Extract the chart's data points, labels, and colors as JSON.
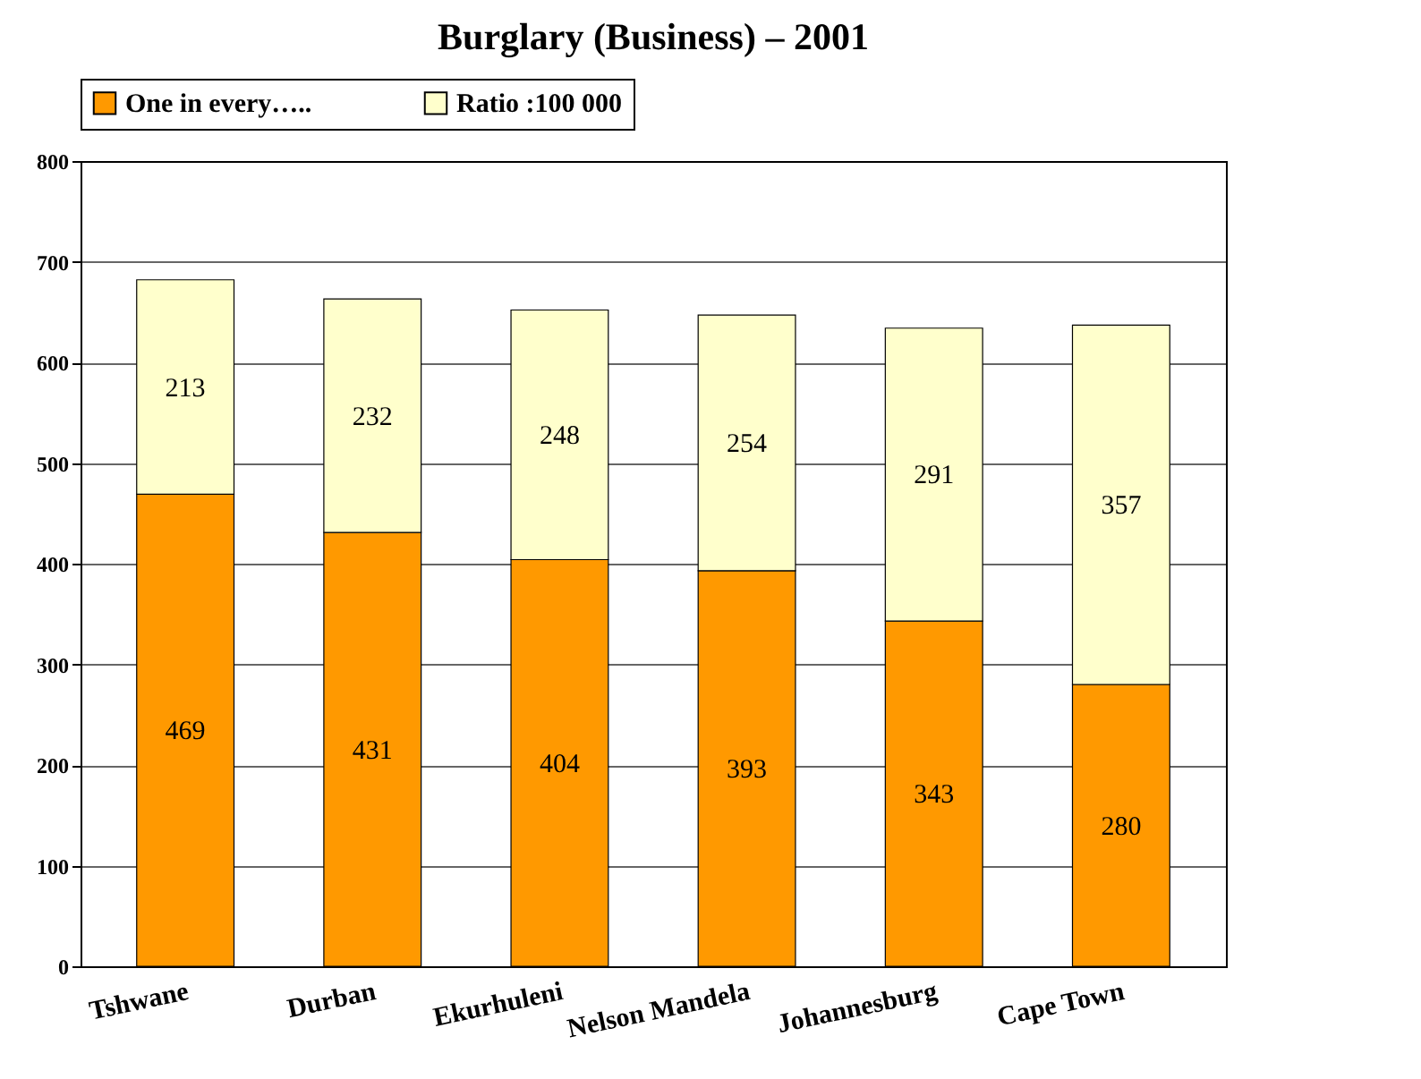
{
  "chart_data": {
    "type": "bar",
    "title": "Burglary (Business) – 2001",
    "categories": [
      "Tshwane",
      "Durban",
      "Ekurhuleni",
      "Nelson Mandela",
      "Johannesburg",
      "Cape Town"
    ],
    "series": [
      {
        "name": "One in every…..",
        "color": "#ff9900",
        "values": [
          469,
          431,
          404,
          393,
          343,
          280
        ]
      },
      {
        "name": "Ratio :100 000",
        "color": "#ffffcc",
        "values": [
          213,
          232,
          248,
          254,
          291,
          357
        ]
      }
    ],
    "stacked": true,
    "ylim": [
      0,
      800
    ],
    "yticks": [
      0,
      100,
      200,
      300,
      400,
      500,
      600,
      700,
      800
    ],
    "grid": "y",
    "legend": "top",
    "data_labels": true
  }
}
